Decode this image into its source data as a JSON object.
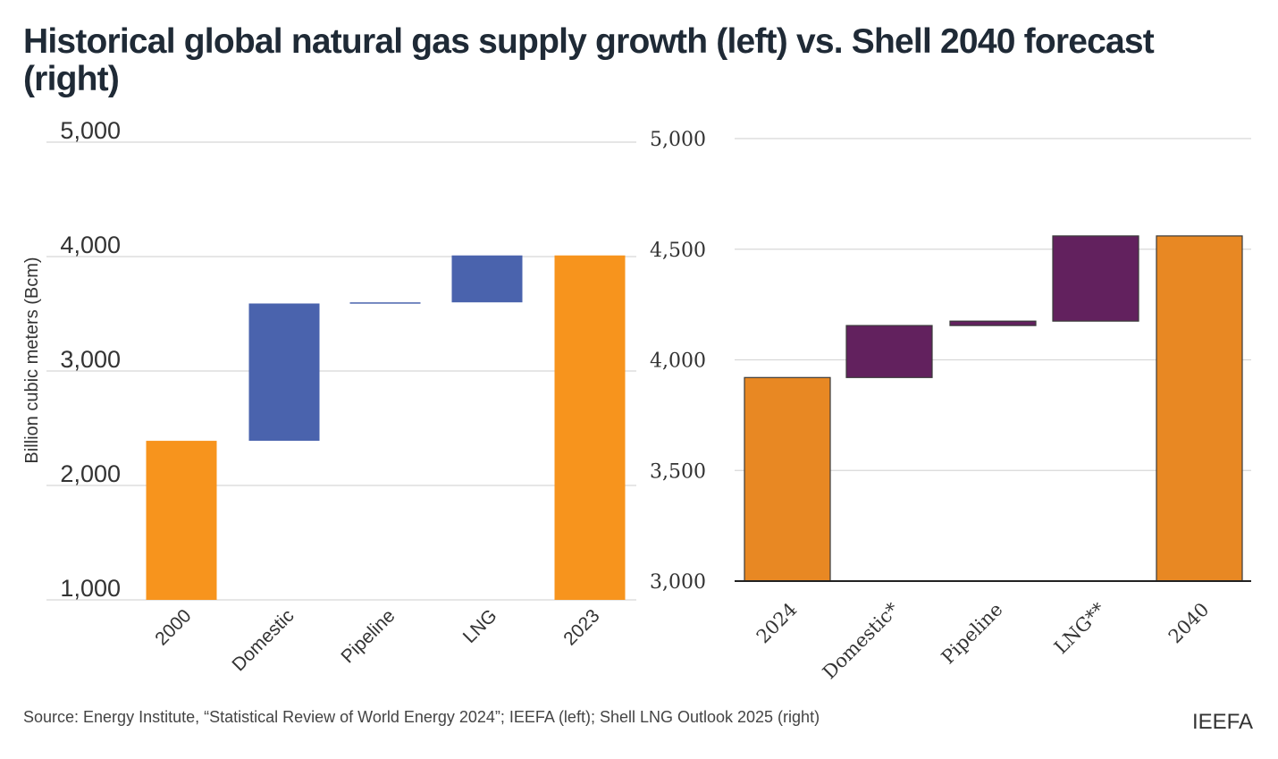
{
  "title": "Historical global natural gas supply growth (left) vs. Shell 2040 forecast (right)",
  "source": "Source: Energy Institute, “Statistical Review of World Energy 2024”; IEEFA (left); Shell LNG Outlook 2025 (right)",
  "brand": "IEEFA",
  "chart_data": [
    {
      "type": "bar",
      "subtype": "waterfall",
      "ylabel": "Billion cubic meters (Bcm)",
      "ylim": [
        1000,
        5000
      ],
      "yticks": [
        "1,000",
        "2,000",
        "3,000",
        "4,000",
        "5,000"
      ],
      "ytick_values": [
        1000,
        2000,
        3000,
        4000,
        5000
      ],
      "grid": true,
      "categories": [
        "2000",
        "Domestic",
        "Pipeline",
        "LNG",
        "2023"
      ],
      "bars": [
        {
          "category": "2000",
          "start": 1000,
          "end": 2390,
          "kind": "total"
        },
        {
          "category": "Domestic",
          "start": 2390,
          "end": 3590,
          "kind": "increase"
        },
        {
          "category": "Pipeline",
          "start": 3590,
          "end": 3600,
          "kind": "increase"
        },
        {
          "category": "LNG",
          "start": 3600,
          "end": 4010,
          "kind": "increase"
        },
        {
          "category": "2023",
          "start": 1000,
          "end": 4010,
          "kind": "total"
        }
      ],
      "colors": {
        "total": "#f7941d",
        "increase": "#4a63ad"
      }
    },
    {
      "type": "bar",
      "subtype": "waterfall",
      "ylim": [
        3000,
        5000
      ],
      "yticks": [
        "3,000",
        "3,500",
        "4,000",
        "4,500",
        "5,000"
      ],
      "ytick_values": [
        3000,
        3500,
        4000,
        4500,
        5000
      ],
      "grid": true,
      "categories": [
        "2024",
        "Domestic*",
        "Pipeline",
        "LNG**",
        "2040"
      ],
      "bars": [
        {
          "category": "2024",
          "start": 3000,
          "end": 3920,
          "kind": "total"
        },
        {
          "category": "Domestic*",
          "start": 3920,
          "end": 4155,
          "kind": "increase"
        },
        {
          "category": "Pipeline",
          "start": 4155,
          "end": 4175,
          "kind": "increase"
        },
        {
          "category": "LNG**",
          "start": 4175,
          "end": 4560,
          "kind": "increase"
        },
        {
          "category": "2040",
          "start": 3000,
          "end": 4560,
          "kind": "total"
        }
      ],
      "colors": {
        "total": "#e88823",
        "increase": "#62215e"
      }
    }
  ]
}
